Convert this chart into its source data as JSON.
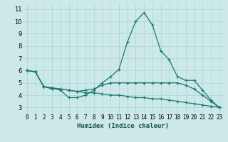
{
  "xlabel": "Humidex (Indice chaleur)",
  "ylabel": "",
  "background_color": "#cce8e8",
  "line_color": "#1a7a6e",
  "xlim": [
    -0.5,
    23.5
  ],
  "ylim": [
    2.5,
    11.5
  ],
  "yticks": [
    3,
    4,
    5,
    6,
    7,
    8,
    9,
    10,
    11
  ],
  "xticks": [
    0,
    1,
    2,
    3,
    4,
    5,
    6,
    7,
    8,
    9,
    10,
    11,
    12,
    13,
    14,
    15,
    16,
    17,
    18,
    19,
    20,
    21,
    22,
    23
  ],
  "line1": [
    6.0,
    5.9,
    4.7,
    4.6,
    4.4,
    3.8,
    3.8,
    4.0,
    4.4,
    5.0,
    5.5,
    6.1,
    8.3,
    10.0,
    10.7,
    9.7,
    7.6,
    6.9,
    5.5,
    5.2,
    5.2,
    4.4,
    3.6,
    3.0
  ],
  "line2": [
    6.0,
    5.9,
    4.7,
    4.5,
    4.5,
    4.4,
    4.3,
    4.4,
    4.5,
    4.8,
    5.0,
    5.0,
    5.0,
    5.0,
    5.0,
    5.0,
    5.0,
    5.0,
    5.0,
    4.8,
    4.5,
    4.0,
    3.5,
    3.0
  ],
  "line3": [
    6.0,
    5.9,
    4.7,
    4.6,
    4.5,
    4.4,
    4.3,
    4.2,
    4.2,
    4.1,
    4.0,
    4.0,
    3.9,
    3.8,
    3.8,
    3.7,
    3.7,
    3.6,
    3.5,
    3.4,
    3.3,
    3.2,
    3.1,
    3.0
  ],
  "grid_color": "#aad4d4",
  "tick_fontsize": 5.5,
  "xlabel_fontsize": 6.5,
  "xlabel_color": "#1a5050"
}
